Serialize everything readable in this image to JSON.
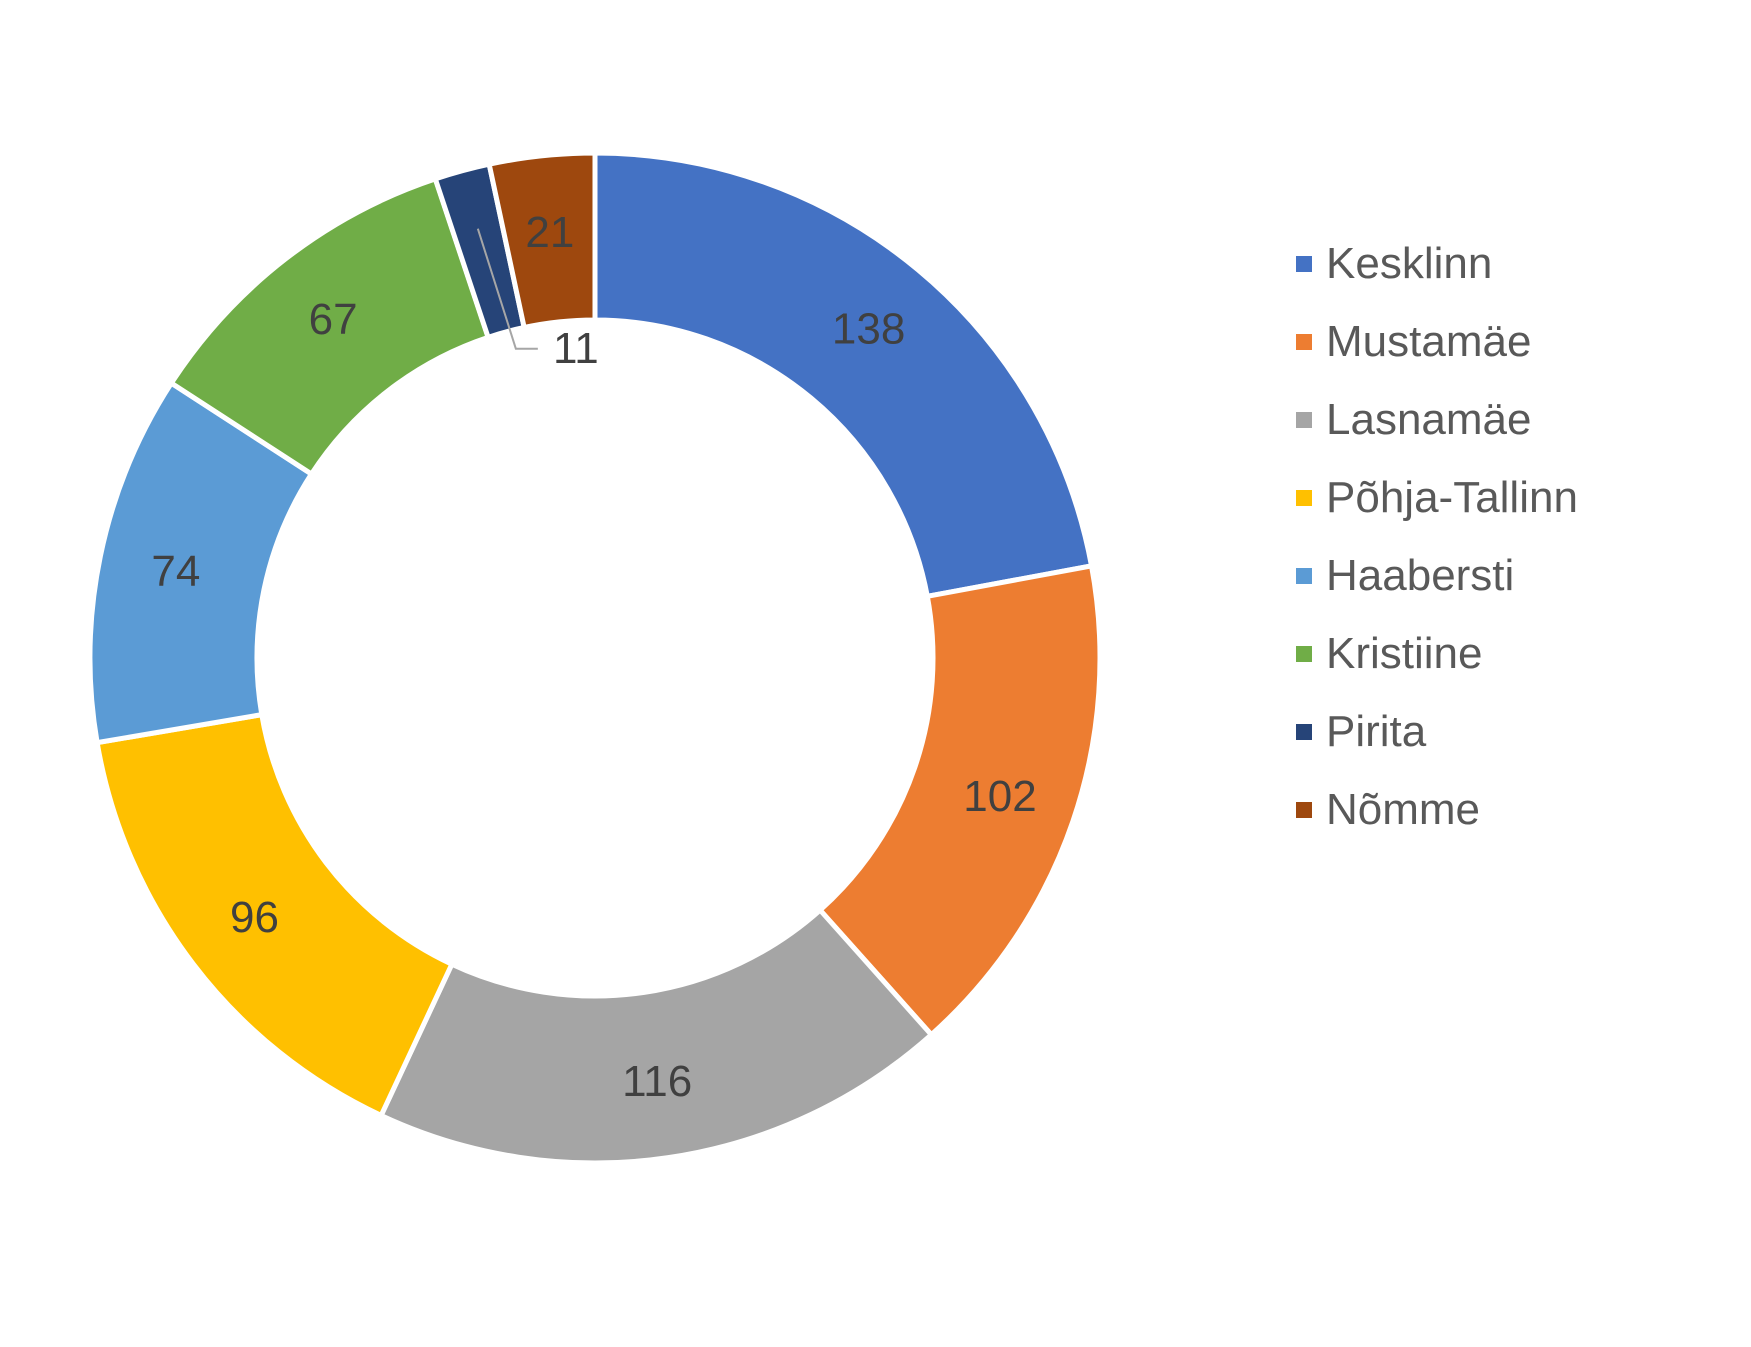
{
  "chart_data": {
    "type": "pie",
    "donut": true,
    "title": "",
    "categories": [
      "Kesklinn",
      "Mustamäe",
      "Lasnamäe",
      "Põhja-Tallinn",
      "Haabersti",
      "Kristiine",
      "Pirita",
      "Nõmme"
    ],
    "values": [
      138,
      102,
      116,
      96,
      74,
      67,
      11,
      21
    ],
    "colors": [
      "#4472C4",
      "#ED7D31",
      "#A5A5A5",
      "#FFC000",
      "#5B9BD5",
      "#70AD47",
      "#264478",
      "#9E480E"
    ],
    "legend": "right",
    "data_labels": true
  }
}
